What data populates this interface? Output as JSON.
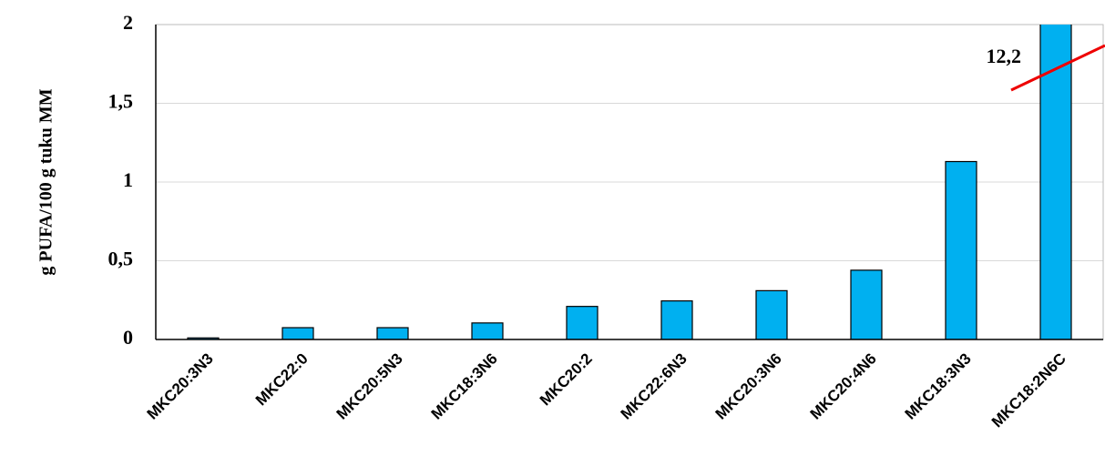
{
  "chart_data": {
    "type": "bar",
    "y_label": "g PUFA/100 g tuku MM",
    "categories": [
      "MKC20:3N3",
      "MKC22:0",
      "MKC20:5N3",
      "MKC18:3N6",
      "MKC20:2",
      "MKC22:6N3",
      "MKC20:3N6",
      "MKC20:4N6",
      "MKC18:3N3",
      "MKC18:2N6C"
    ],
    "values": [
      0.01,
      0.075,
      0.075,
      0.105,
      0.21,
      0.245,
      0.31,
      0.44,
      1.13,
      12.2
    ],
    "value_labels": [
      null,
      null,
      null,
      null,
      null,
      null,
      null,
      null,
      null,
      "12,2"
    ],
    "color": "#00b0f0",
    "ylim": [
      0,
      2
    ],
    "yticks": [
      0,
      {
        "value": 0.5,
        "label": "0,5"
      },
      1,
      {
        "value": 1.5,
        "label": "1,5"
      },
      2
    ],
    "grid": true
  }
}
